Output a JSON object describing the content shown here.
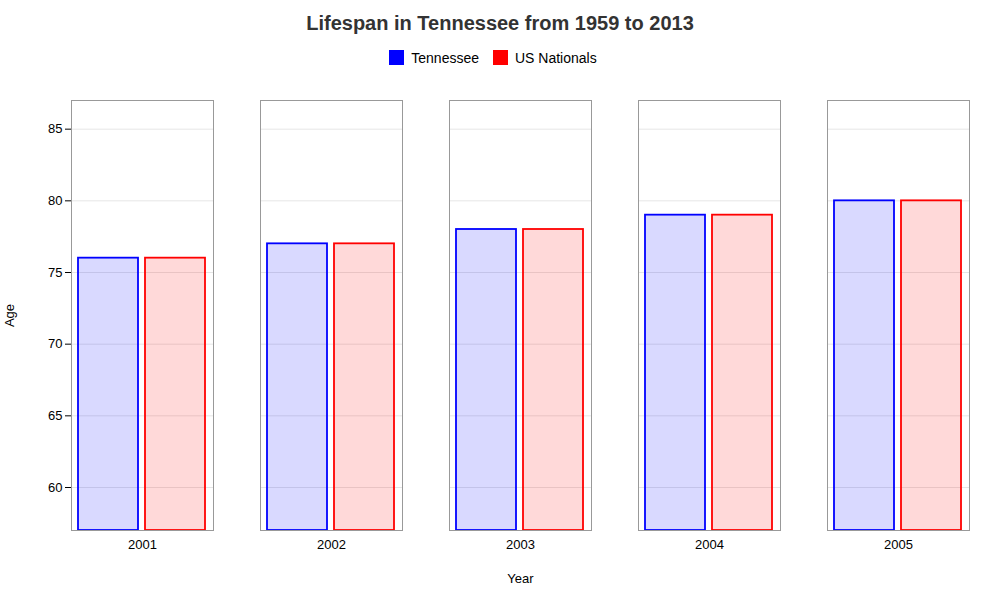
{
  "chart_data": {
    "type": "bar",
    "title": "Lifespan in Tennessee from 1959 to 2013",
    "xlabel": "Year",
    "ylabel": "Age",
    "categories": [
      "2001",
      "2002",
      "2003",
      "2004",
      "2005"
    ],
    "series": [
      {
        "name": "Tennessee",
        "color": "#0000ff",
        "values": [
          76,
          77,
          78,
          79,
          80
        ]
      },
      {
        "name": "US Nationals",
        "color": "#ff0000",
        "values": [
          76,
          77,
          78,
          79,
          80
        ]
      }
    ],
    "ylim": [
      57,
      87
    ],
    "yticks": [
      60,
      65,
      70,
      75,
      80,
      85
    ],
    "grid": true,
    "legend": "top"
  }
}
